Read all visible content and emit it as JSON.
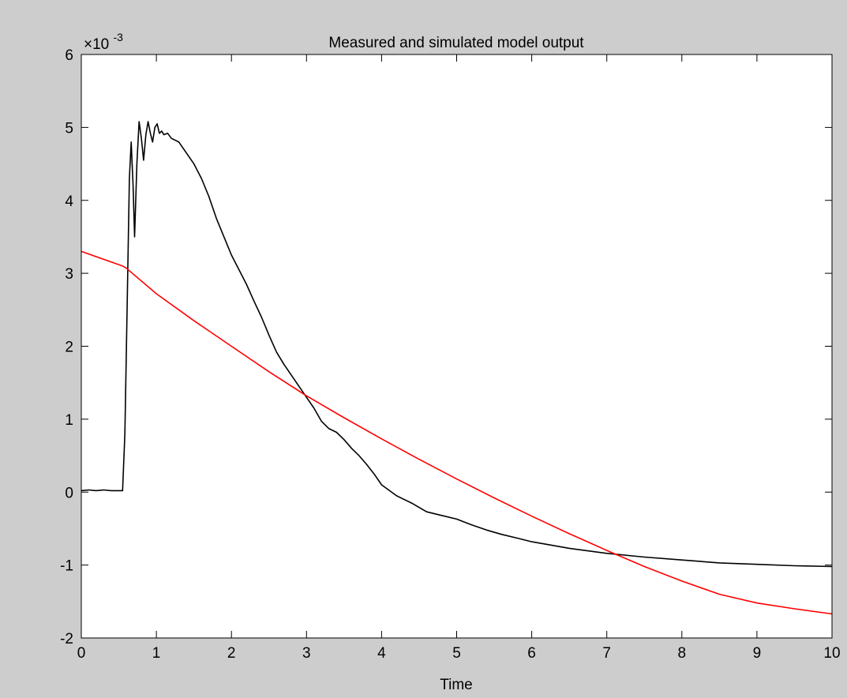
{
  "window": {
    "background": "#cdcdcd"
  },
  "chart_data": {
    "type": "line",
    "title": "Measured and simulated model output",
    "xlabel": "Time",
    "ylabel": "",
    "exponent_label": "×10",
    "exponent_power": "-3",
    "xlim": [
      0,
      10
    ],
    "ylim": [
      -2,
      6
    ],
    "xticks": [
      0,
      1,
      2,
      3,
      4,
      5,
      6,
      7,
      8,
      9,
      10
    ],
    "yticks": [
      -2,
      -1,
      0,
      1,
      2,
      3,
      4,
      5,
      6
    ],
    "grid": false,
    "legend": "none",
    "series": [
      {
        "color": "#000000",
        "points": [
          [
            0,
            0.02
          ],
          [
            0.1,
            0.03
          ],
          [
            0.2,
            0.02
          ],
          [
            0.3,
            0.03
          ],
          [
            0.4,
            0.02
          ],
          [
            0.5,
            0.02
          ],
          [
            0.55,
            0.02
          ],
          [
            0.58,
            0.8
          ],
          [
            0.61,
            2.5
          ],
          [
            0.64,
            4.3
          ],
          [
            0.665,
            4.8
          ],
          [
            0.69,
            4.2
          ],
          [
            0.71,
            3.5
          ],
          [
            0.74,
            4.5
          ],
          [
            0.77,
            5.08
          ],
          [
            0.8,
            4.85
          ],
          [
            0.83,
            4.55
          ],
          [
            0.86,
            4.9
          ],
          [
            0.89,
            5.08
          ],
          [
            0.92,
            4.92
          ],
          [
            0.95,
            4.8
          ],
          [
            0.98,
            5.0
          ],
          [
            1.01,
            5.05
          ],
          [
            1.04,
            4.92
          ],
          [
            1.07,
            4.95
          ],
          [
            1.1,
            4.9
          ],
          [
            1.15,
            4.92
          ],
          [
            1.2,
            4.85
          ],
          [
            1.3,
            4.8
          ],
          [
            1.4,
            4.65
          ],
          [
            1.5,
            4.5
          ],
          [
            1.6,
            4.3
          ],
          [
            1.7,
            4.05
          ],
          [
            1.8,
            3.75
          ],
          [
            1.9,
            3.5
          ],
          [
            2.0,
            3.25
          ],
          [
            2.1,
            3.05
          ],
          [
            2.2,
            2.85
          ],
          [
            2.3,
            2.62
          ],
          [
            2.4,
            2.4
          ],
          [
            2.5,
            2.15
          ],
          [
            2.6,
            1.92
          ],
          [
            2.7,
            1.75
          ],
          [
            2.8,
            1.6
          ],
          [
            2.9,
            1.45
          ],
          [
            3.0,
            1.3
          ],
          [
            3.1,
            1.15
          ],
          [
            3.2,
            0.97
          ],
          [
            3.3,
            0.87
          ],
          [
            3.4,
            0.82
          ],
          [
            3.5,
            0.72
          ],
          [
            3.6,
            0.6
          ],
          [
            3.7,
            0.5
          ],
          [
            3.8,
            0.38
          ],
          [
            3.9,
            0.25
          ],
          [
            4.0,
            0.1
          ],
          [
            4.2,
            -0.05
          ],
          [
            4.4,
            -0.15
          ],
          [
            4.6,
            -0.27
          ],
          [
            4.8,
            -0.32
          ],
          [
            5.0,
            -0.37
          ],
          [
            5.2,
            -0.45
          ],
          [
            5.4,
            -0.52
          ],
          [
            5.6,
            -0.58
          ],
          [
            5.8,
            -0.63
          ],
          [
            6.0,
            -0.68
          ],
          [
            6.5,
            -0.77
          ],
          [
            7.0,
            -0.84
          ],
          [
            7.5,
            -0.89
          ],
          [
            8.0,
            -0.93
          ],
          [
            8.5,
            -0.97
          ],
          [
            9.0,
            -0.99
          ],
          [
            9.5,
            -1.01
          ],
          [
            10.0,
            -1.02
          ]
        ]
      },
      {
        "color": "#ff0000",
        "points": [
          [
            0,
            3.3
          ],
          [
            0.55,
            3.1
          ],
          [
            0.6,
            3.07
          ],
          [
            1.0,
            2.72
          ],
          [
            1.5,
            2.35
          ],
          [
            2.0,
            2.0
          ],
          [
            2.5,
            1.65
          ],
          [
            3.0,
            1.32
          ],
          [
            3.5,
            1.02
          ],
          [
            4.0,
            0.73
          ],
          [
            4.5,
            0.45
          ],
          [
            5.0,
            0.18
          ],
          [
            5.5,
            -0.08
          ],
          [
            6.0,
            -0.33
          ],
          [
            6.5,
            -0.57
          ],
          [
            7.0,
            -0.8
          ],
          [
            7.5,
            -1.02
          ],
          [
            8.0,
            -1.22
          ],
          [
            8.5,
            -1.4
          ],
          [
            9.0,
            -1.52
          ],
          [
            9.5,
            -1.6
          ],
          [
            10.0,
            -1.67
          ]
        ]
      }
    ]
  }
}
